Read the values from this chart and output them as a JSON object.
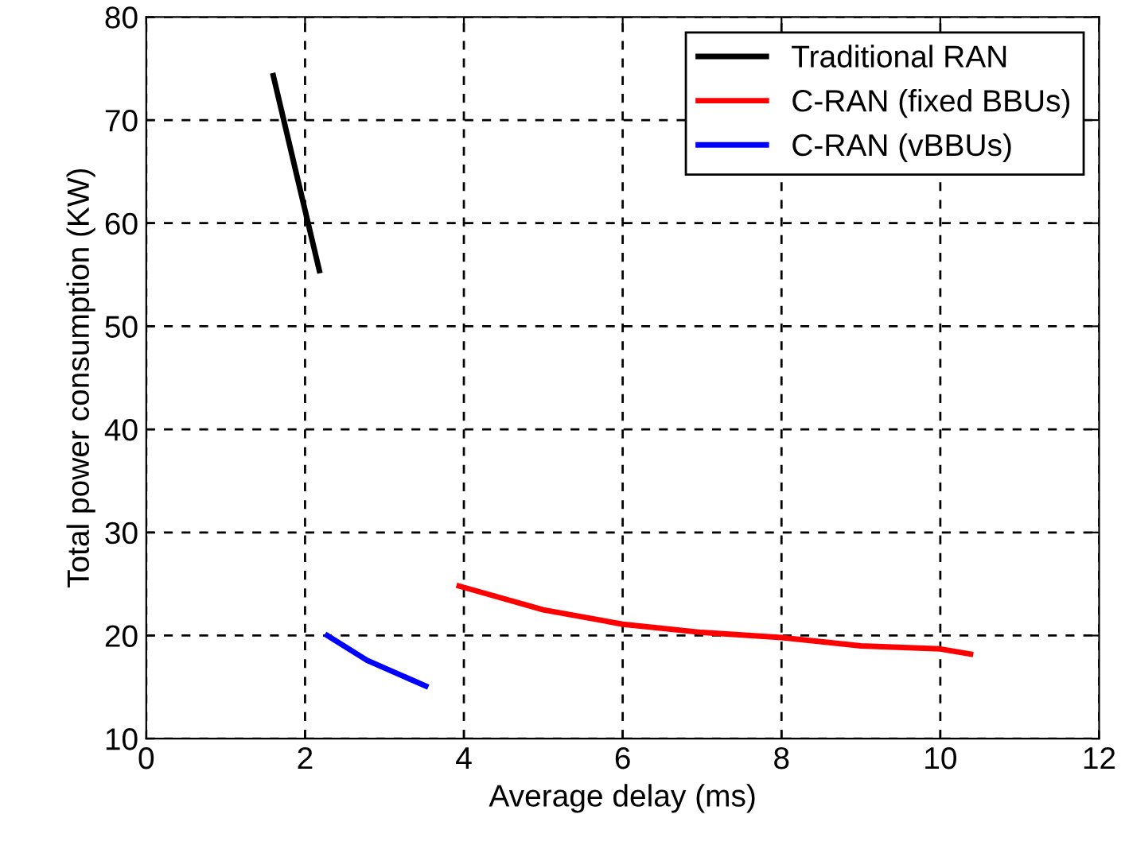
{
  "chart_data": {
    "type": "line",
    "xlabel": "Average delay (ms)",
    "ylabel": "Total power consumption (KW)",
    "series": [
      {
        "name": "Traditional RAN",
        "color": "#000000",
        "x": [
          1.6,
          1.9,
          2.18
        ],
        "values": [
          74.3,
          64.5,
          55.4
        ]
      },
      {
        "name": "C-RAN (fixed BBUs)",
        "color": "#ff0000",
        "x": [
          3.94,
          5,
          6,
          7,
          8,
          9,
          10,
          10.38
        ],
        "values": [
          24.8,
          22.5,
          21.1,
          20.3,
          19.8,
          19.0,
          18.7,
          18.2
        ]
      },
      {
        "name": "C-RAN (vBBUs)",
        "color": "#0000ff",
        "x": [
          2.28,
          2.78,
          3.52
        ],
        "values": [
          20.0,
          17.6,
          15.1
        ]
      }
    ],
    "xlim": [
      0,
      12
    ],
    "xticks": [
      0,
      2,
      4,
      6,
      8,
      10,
      12
    ],
    "ylim": [
      10,
      80
    ],
    "yticks": [
      10,
      20,
      30,
      40,
      50,
      60,
      70,
      80
    ],
    "grid": true,
    "legend": "top right",
    "line_style": "solid",
    "marker": "none"
  }
}
